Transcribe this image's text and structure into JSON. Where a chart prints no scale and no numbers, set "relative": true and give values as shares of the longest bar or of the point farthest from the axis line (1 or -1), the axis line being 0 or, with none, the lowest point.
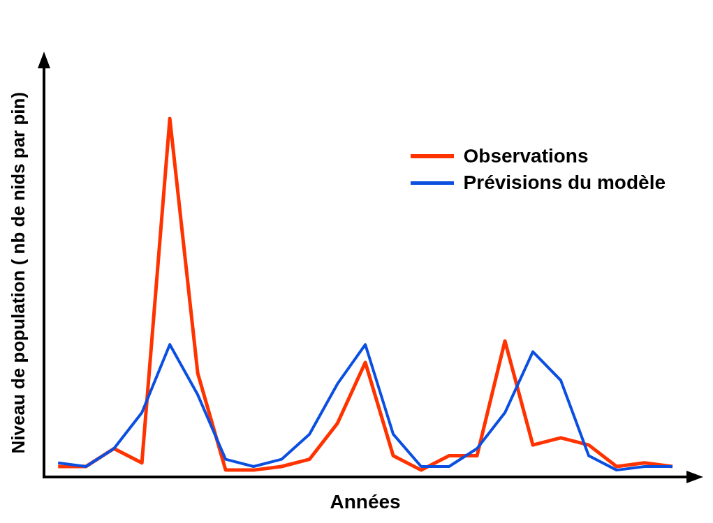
{
  "chart_data": {
    "type": "line",
    "relative": true,
    "xlabel": "Années",
    "ylabel": "Niveau de population ( nb de nids par pin)",
    "categories": [
      null,
      null,
      null,
      null,
      null,
      null,
      null,
      null,
      null,
      null,
      null,
      null,
      null,
      null,
      null,
      null,
      null,
      null,
      null,
      null,
      null,
      null,
      null
    ],
    "series": [
      {
        "name": "Observations",
        "color": "#ff3300",
        "values": [
          0.03,
          0.03,
          0.08,
          0.04,
          1,
          0.29,
          0.02,
          0.02,
          0.03,
          0.05,
          0.15,
          0.32,
          0.06,
          0.02,
          0.06,
          0.06,
          0.38,
          0.09,
          0.11,
          0.09,
          0.03,
          0.04,
          0.03
        ]
      },
      {
        "name": "Prévisions du modèle",
        "color": "#0a4fe0",
        "values": [
          0.04,
          0.03,
          0.08,
          0.18,
          0.37,
          0.23,
          0.05,
          0.03,
          0.05,
          0.12,
          0.26,
          0.37,
          0.12,
          0.03,
          0.03,
          0.08,
          0.18,
          0.35,
          0.27,
          0.06,
          0.02,
          0.03,
          0.03
        ]
      }
    ],
    "legend": "top right",
    "grid": false,
    "marker": "none",
    "line_style": "solid"
  }
}
